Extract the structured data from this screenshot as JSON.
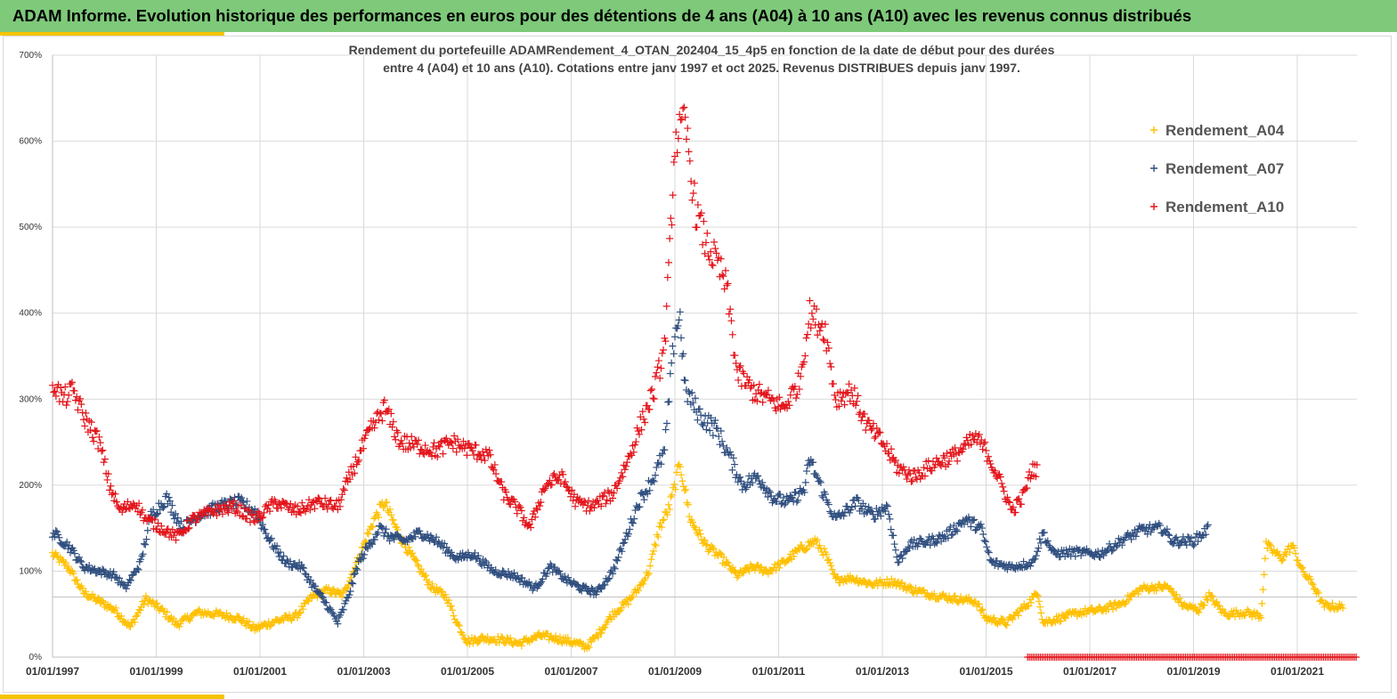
{
  "header": {
    "title": "ADAM Informe. Evolution historique des performances en euros pour des détentions de 4 ans (A04) à 10 ans (A10) avec les revenus connus distribués"
  },
  "colors": {
    "banner": "#7ec97a",
    "accent": "#f5c400",
    "A04": "#ffc000",
    "A07": "#2f4e7f",
    "A10": "#e3141a"
  },
  "chart_data": {
    "type": "scatter",
    "title": "Rendement du portefeuille ADAMRendement_4_OTAN_202404_15_4p5  en fonction de la date de début pour des durées",
    "subtitle": "entre 4 (A04) et 10 ans (A10). Cotations entre janv 1997 et oct 2025. Revenus DISTRIBUES depuis janv 1997.",
    "xlabel": "",
    "ylabel": "",
    "xlim": [
      1997.0,
      2022.15
    ],
    "ylim": [
      0,
      700
    ],
    "grid": true,
    "marker": "+",
    "legend_position": "top-right",
    "yticks": [
      "0%",
      "100%",
      "200%",
      "300%",
      "400%",
      "500%",
      "600%",
      "700%"
    ],
    "ytick_values": [
      0,
      100,
      200,
      300,
      400,
      500,
      600,
      700
    ],
    "xticks": [
      "01/01/1997",
      "01/01/1999",
      "01/01/2001",
      "01/01/2003",
      "01/01/2005",
      "01/01/2007",
      "01/01/2009",
      "01/01/2011",
      "01/01/2013",
      "01/01/2015",
      "01/01/2017",
      "01/01/2019",
      "01/01/2021"
    ],
    "xtick_values": [
      1997,
      1999,
      2001,
      2003,
      2005,
      2007,
      2009,
      2011,
      2013,
      2015,
      2017,
      2019,
      2021
    ],
    "series": [
      {
        "name": "Rendement_A04",
        "color": "#ffc000",
        "anchors": [
          [
            1997.0,
            120
          ],
          [
            1997.3,
            105
          ],
          [
            1997.6,
            75
          ],
          [
            1997.9,
            65
          ],
          [
            1998.2,
            55
          ],
          [
            1998.5,
            35
          ],
          [
            1998.8,
            68
          ],
          [
            1999.1,
            55
          ],
          [
            1999.4,
            38
          ],
          [
            1999.8,
            52
          ],
          [
            2000.2,
            50
          ],
          [
            2000.6,
            45
          ],
          [
            2000.9,
            33
          ],
          [
            2001.3,
            42
          ],
          [
            2001.7,
            48
          ],
          [
            2002.0,
            70
          ],
          [
            2002.3,
            78
          ],
          [
            2002.6,
            72
          ],
          [
            2002.9,
            115
          ],
          [
            2003.2,
            160
          ],
          [
            2003.4,
            180
          ],
          [
            2003.7,
            140
          ],
          [
            2004.0,
            110
          ],
          [
            2004.3,
            82
          ],
          [
            2004.6,
            70
          ],
          [
            2004.8,
            40
          ],
          [
            2005.0,
            18
          ],
          [
            2005.3,
            22
          ],
          [
            2005.7,
            20
          ],
          [
            2006.0,
            16
          ],
          [
            2006.4,
            25
          ],
          [
            2006.7,
            22
          ],
          [
            2007.0,
            18
          ],
          [
            2007.3,
            12
          ],
          [
            2007.5,
            25
          ],
          [
            2007.8,
            50
          ],
          [
            2008.1,
            65
          ],
          [
            2008.3,
            80
          ],
          [
            2008.5,
            100
          ],
          [
            2008.7,
            150
          ],
          [
            2008.9,
            175
          ],
          [
            2009.1,
            225
          ],
          [
            2009.3,
            160
          ],
          [
            2009.6,
            130
          ],
          [
            2009.9,
            115
          ],
          [
            2010.2,
            95
          ],
          [
            2010.5,
            105
          ],
          [
            2010.8,
            100
          ],
          [
            2011.1,
            110
          ],
          [
            2011.4,
            125
          ],
          [
            2011.7,
            135
          ],
          [
            2011.9,
            120
          ],
          [
            2012.1,
            90
          ],
          [
            2012.4,
            92
          ],
          [
            2012.8,
            85
          ],
          [
            2013.2,
            88
          ],
          [
            2013.6,
            78
          ],
          [
            2014.0,
            72
          ],
          [
            2014.4,
            68
          ],
          [
            2014.8,
            65
          ],
          [
            2015.0,
            45
          ],
          [
            2015.4,
            40
          ],
          [
            2015.8,
            62
          ],
          [
            2016.0,
            75
          ],
          [
            2016.1,
            40
          ],
          [
            2016.4,
            45
          ],
          [
            2016.8,
            52
          ],
          [
            2017.2,
            55
          ],
          [
            2017.6,
            62
          ],
          [
            2018.0,
            80
          ],
          [
            2018.5,
            82
          ],
          [
            2018.8,
            60
          ],
          [
            2019.1,
            55
          ],
          [
            2019.3,
            72
          ],
          [
            2019.6,
            50
          ],
          [
            2020.0,
            52
          ],
          [
            2020.3,
            48
          ],
          [
            2020.4,
            130
          ],
          [
            2020.7,
            115
          ],
          [
            2020.9,
            130
          ],
          [
            2021.1,
            100
          ],
          [
            2021.3,
            85
          ],
          [
            2021.5,
            60
          ],
          [
            2021.9,
            58
          ]
        ]
      },
      {
        "name": "Rendement_A07",
        "color": "#2f4e7f",
        "anchors": [
          [
            1997.0,
            145
          ],
          [
            1997.3,
            130
          ],
          [
            1997.6,
            105
          ],
          [
            1997.9,
            100
          ],
          [
            1998.2,
            95
          ],
          [
            1998.4,
            80
          ],
          [
            1998.7,
            110
          ],
          [
            1998.9,
            165
          ],
          [
            1999.2,
            185
          ],
          [
            1999.5,
            150
          ],
          [
            1999.8,
            165
          ],
          [
            2000.2,
            175
          ],
          [
            2000.6,
            180
          ],
          [
            2000.9,
            170
          ],
          [
            2001.2,
            135
          ],
          [
            2001.5,
            110
          ],
          [
            2001.8,
            105
          ],
          [
            2002.0,
            85
          ],
          [
            2002.3,
            60
          ],
          [
            2002.5,
            40
          ],
          [
            2002.7,
            70
          ],
          [
            2002.9,
            110
          ],
          [
            2003.1,
            130
          ],
          [
            2003.3,
            150
          ],
          [
            2003.5,
            140
          ],
          [
            2003.8,
            135
          ],
          [
            2004.1,
            145
          ],
          [
            2004.4,
            135
          ],
          [
            2004.8,
            115
          ],
          [
            2005.1,
            120
          ],
          [
            2005.5,
            100
          ],
          [
            2005.9,
            95
          ],
          [
            2006.3,
            80
          ],
          [
            2006.6,
            105
          ],
          [
            2006.9,
            90
          ],
          [
            2007.2,
            80
          ],
          [
            2007.5,
            75
          ],
          [
            2007.8,
            100
          ],
          [
            2008.0,
            130
          ],
          [
            2008.3,
            180
          ],
          [
            2008.6,
            210
          ],
          [
            2008.8,
            240
          ],
          [
            2009.0,
            380
          ],
          [
            2009.1,
            395
          ],
          [
            2009.2,
            310
          ],
          [
            2009.5,
            280
          ],
          [
            2009.8,
            265
          ],
          [
            2010.0,
            240
          ],
          [
            2010.3,
            200
          ],
          [
            2010.6,
            210
          ],
          [
            2010.9,
            185
          ],
          [
            2011.2,
            180
          ],
          [
            2011.5,
            195
          ],
          [
            2011.6,
            230
          ],
          [
            2011.9,
            185
          ],
          [
            2012.1,
            160
          ],
          [
            2012.5,
            180
          ],
          [
            2012.8,
            165
          ],
          [
            2013.1,
            175
          ],
          [
            2013.3,
            110
          ],
          [
            2013.5,
            130
          ],
          [
            2013.9,
            135
          ],
          [
            2014.2,
            140
          ],
          [
            2014.6,
            160
          ],
          [
            2014.9,
            150
          ],
          [
            2015.1,
            110
          ],
          [
            2015.5,
            105
          ],
          [
            2015.9,
            110
          ],
          [
            2016.1,
            145
          ],
          [
            2016.3,
            120
          ],
          [
            2016.7,
            122
          ],
          [
            2017.2,
            120
          ],
          [
            2017.6,
            135
          ],
          [
            2018.0,
            148
          ],
          [
            2018.4,
            150
          ],
          [
            2018.6,
            135
          ],
          [
            2019.0,
            135
          ],
          [
            2019.3,
            150
          ]
        ]
      },
      {
        "name": "Rendement_A10",
        "color": "#e3141a",
        "anchors": [
          [
            1997.0,
            320
          ],
          [
            1997.2,
            300
          ],
          [
            1997.4,
            310
          ],
          [
            1997.6,
            280
          ],
          [
            1997.9,
            250
          ],
          [
            1998.1,
            200
          ],
          [
            1998.3,
            170
          ],
          [
            1998.6,
            180
          ],
          [
            1998.8,
            160
          ],
          [
            1999.1,
            150
          ],
          [
            1999.4,
            140
          ],
          [
            1999.7,
            160
          ],
          [
            2000.1,
            170
          ],
          [
            2000.5,
            175
          ],
          [
            2000.9,
            160
          ],
          [
            2001.3,
            180
          ],
          [
            2001.7,
            170
          ],
          [
            2002.1,
            180
          ],
          [
            2002.5,
            175
          ],
          [
            2002.8,
            220
          ],
          [
            2003.1,
            260
          ],
          [
            2003.4,
            290
          ],
          [
            2003.7,
            250
          ],
          [
            2004.1,
            245
          ],
          [
            2004.4,
            240
          ],
          [
            2004.7,
            250
          ],
          [
            2005.1,
            240
          ],
          [
            2005.4,
            235
          ],
          [
            2005.7,
            190
          ],
          [
            2006.0,
            170
          ],
          [
            2006.2,
            150
          ],
          [
            2006.5,
            200
          ],
          [
            2006.8,
            210
          ],
          [
            2007.1,
            180
          ],
          [
            2007.4,
            175
          ],
          [
            2007.8,
            190
          ],
          [
            2008.1,
            230
          ],
          [
            2008.4,
            280
          ],
          [
            2008.6,
            310
          ],
          [
            2008.8,
            360
          ],
          [
            2008.9,
            470
          ],
          [
            2009.0,
            600
          ],
          [
            2009.2,
            620
          ],
          [
            2009.4,
            520
          ],
          [
            2009.6,
            480
          ],
          [
            2009.8,
            460
          ],
          [
            2010.0,
            430
          ],
          [
            2010.2,
            330
          ],
          [
            2010.5,
            310
          ],
          [
            2010.8,
            300
          ],
          [
            2011.1,
            290
          ],
          [
            2011.4,
            320
          ],
          [
            2011.6,
            400
          ],
          [
            2011.9,
            380
          ],
          [
            2012.1,
            300
          ],
          [
            2012.4,
            310
          ],
          [
            2012.7,
            270
          ],
          [
            2013.0,
            250
          ],
          [
            2013.3,
            220
          ],
          [
            2013.6,
            210
          ],
          [
            2014.0,
            225
          ],
          [
            2014.4,
            235
          ],
          [
            2014.8,
            255
          ],
          [
            2015.0,
            240
          ],
          [
            2015.3,
            200
          ],
          [
            2015.5,
            170
          ],
          [
            2015.7,
            185
          ],
          [
            2015.9,
            220
          ],
          [
            2016.0,
            215
          ]
        ]
      }
    ],
    "flat_segment": {
      "series": "Rendement_A10",
      "x_start": 2015.8,
      "x_end": 2022.15,
      "value": 0
    }
  }
}
